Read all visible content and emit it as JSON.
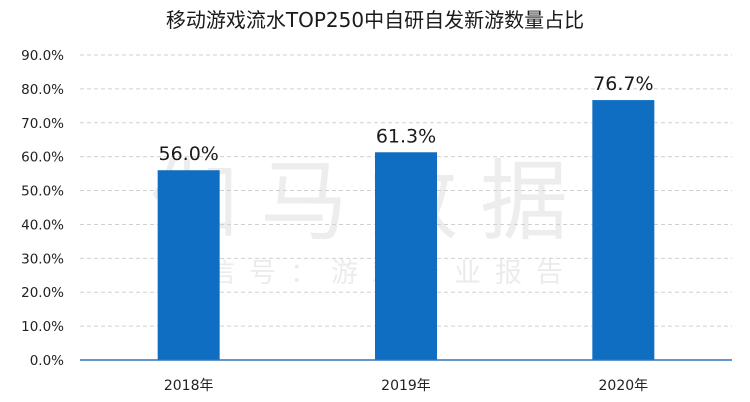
{
  "watermark": {
    "main": "伽马数据",
    "sub": "微信号：游戏产业报告"
  },
  "colors": {
    "bar": "#0F6EC2",
    "grid": "#D0D0D0",
    "axis": "#2F75B5"
  },
  "chart_data": {
    "type": "bar",
    "title": "移动游戏流水TOP250中自研自发新游数量占比",
    "xlabel": "",
    "ylabel": "",
    "categories": [
      "2018年",
      "2019年",
      "2020年"
    ],
    "series": [
      {
        "values": [
          56.0,
          61.3,
          76.7
        ]
      }
    ],
    "data_labels": [
      "56.0%",
      "61.3%",
      "76.7%"
    ],
    "y_ticks": [
      "0.0%",
      "10.0%",
      "20.0%",
      "30.0%",
      "40.0%",
      "50.0%",
      "60.0%",
      "70.0%",
      "80.0%",
      "90.0%"
    ],
    "ylim": [
      0,
      90
    ],
    "grid": true,
    "legend": "none"
  }
}
